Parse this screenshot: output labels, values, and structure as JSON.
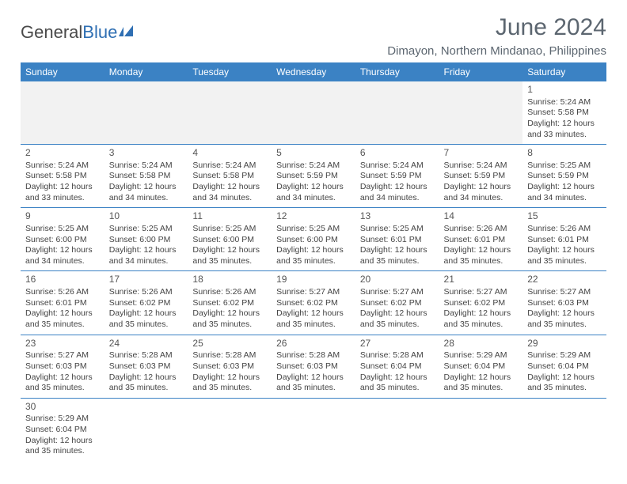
{
  "logo": {
    "part1": "General",
    "part2": "Blue"
  },
  "title": "June 2024",
  "location": "Dimayon, Northern Mindanao, Philippines",
  "colors": {
    "header_bg": "#3b82c4",
    "header_text": "#ffffff",
    "title_text": "#5c6670",
    "cell_border": "#3b82c4",
    "empty_bg": "#f2f2f2"
  },
  "weekdays": [
    "Sunday",
    "Monday",
    "Tuesday",
    "Wednesday",
    "Thursday",
    "Friday",
    "Saturday"
  ],
  "weeks": [
    [
      null,
      null,
      null,
      null,
      null,
      null,
      {
        "n": "1",
        "rise": "Sunrise: 5:24 AM",
        "set": "Sunset: 5:58 PM",
        "dl1": "Daylight: 12 hours",
        "dl2": "and 33 minutes."
      }
    ],
    [
      {
        "n": "2",
        "rise": "Sunrise: 5:24 AM",
        "set": "Sunset: 5:58 PM",
        "dl1": "Daylight: 12 hours",
        "dl2": "and 33 minutes."
      },
      {
        "n": "3",
        "rise": "Sunrise: 5:24 AM",
        "set": "Sunset: 5:58 PM",
        "dl1": "Daylight: 12 hours",
        "dl2": "and 34 minutes."
      },
      {
        "n": "4",
        "rise": "Sunrise: 5:24 AM",
        "set": "Sunset: 5:58 PM",
        "dl1": "Daylight: 12 hours",
        "dl2": "and 34 minutes."
      },
      {
        "n": "5",
        "rise": "Sunrise: 5:24 AM",
        "set": "Sunset: 5:59 PM",
        "dl1": "Daylight: 12 hours",
        "dl2": "and 34 minutes."
      },
      {
        "n": "6",
        "rise": "Sunrise: 5:24 AM",
        "set": "Sunset: 5:59 PM",
        "dl1": "Daylight: 12 hours",
        "dl2": "and 34 minutes."
      },
      {
        "n": "7",
        "rise": "Sunrise: 5:24 AM",
        "set": "Sunset: 5:59 PM",
        "dl1": "Daylight: 12 hours",
        "dl2": "and 34 minutes."
      },
      {
        "n": "8",
        "rise": "Sunrise: 5:25 AM",
        "set": "Sunset: 5:59 PM",
        "dl1": "Daylight: 12 hours",
        "dl2": "and 34 minutes."
      }
    ],
    [
      {
        "n": "9",
        "rise": "Sunrise: 5:25 AM",
        "set": "Sunset: 6:00 PM",
        "dl1": "Daylight: 12 hours",
        "dl2": "and 34 minutes."
      },
      {
        "n": "10",
        "rise": "Sunrise: 5:25 AM",
        "set": "Sunset: 6:00 PM",
        "dl1": "Daylight: 12 hours",
        "dl2": "and 34 minutes."
      },
      {
        "n": "11",
        "rise": "Sunrise: 5:25 AM",
        "set": "Sunset: 6:00 PM",
        "dl1": "Daylight: 12 hours",
        "dl2": "and 35 minutes."
      },
      {
        "n": "12",
        "rise": "Sunrise: 5:25 AM",
        "set": "Sunset: 6:00 PM",
        "dl1": "Daylight: 12 hours",
        "dl2": "and 35 minutes."
      },
      {
        "n": "13",
        "rise": "Sunrise: 5:25 AM",
        "set": "Sunset: 6:01 PM",
        "dl1": "Daylight: 12 hours",
        "dl2": "and 35 minutes."
      },
      {
        "n": "14",
        "rise": "Sunrise: 5:26 AM",
        "set": "Sunset: 6:01 PM",
        "dl1": "Daylight: 12 hours",
        "dl2": "and 35 minutes."
      },
      {
        "n": "15",
        "rise": "Sunrise: 5:26 AM",
        "set": "Sunset: 6:01 PM",
        "dl1": "Daylight: 12 hours",
        "dl2": "and 35 minutes."
      }
    ],
    [
      {
        "n": "16",
        "rise": "Sunrise: 5:26 AM",
        "set": "Sunset: 6:01 PM",
        "dl1": "Daylight: 12 hours",
        "dl2": "and 35 minutes."
      },
      {
        "n": "17",
        "rise": "Sunrise: 5:26 AM",
        "set": "Sunset: 6:02 PM",
        "dl1": "Daylight: 12 hours",
        "dl2": "and 35 minutes."
      },
      {
        "n": "18",
        "rise": "Sunrise: 5:26 AM",
        "set": "Sunset: 6:02 PM",
        "dl1": "Daylight: 12 hours",
        "dl2": "and 35 minutes."
      },
      {
        "n": "19",
        "rise": "Sunrise: 5:27 AM",
        "set": "Sunset: 6:02 PM",
        "dl1": "Daylight: 12 hours",
        "dl2": "and 35 minutes."
      },
      {
        "n": "20",
        "rise": "Sunrise: 5:27 AM",
        "set": "Sunset: 6:02 PM",
        "dl1": "Daylight: 12 hours",
        "dl2": "and 35 minutes."
      },
      {
        "n": "21",
        "rise": "Sunrise: 5:27 AM",
        "set": "Sunset: 6:02 PM",
        "dl1": "Daylight: 12 hours",
        "dl2": "and 35 minutes."
      },
      {
        "n": "22",
        "rise": "Sunrise: 5:27 AM",
        "set": "Sunset: 6:03 PM",
        "dl1": "Daylight: 12 hours",
        "dl2": "and 35 minutes."
      }
    ],
    [
      {
        "n": "23",
        "rise": "Sunrise: 5:27 AM",
        "set": "Sunset: 6:03 PM",
        "dl1": "Daylight: 12 hours",
        "dl2": "and 35 minutes."
      },
      {
        "n": "24",
        "rise": "Sunrise: 5:28 AM",
        "set": "Sunset: 6:03 PM",
        "dl1": "Daylight: 12 hours",
        "dl2": "and 35 minutes."
      },
      {
        "n": "25",
        "rise": "Sunrise: 5:28 AM",
        "set": "Sunset: 6:03 PM",
        "dl1": "Daylight: 12 hours",
        "dl2": "and 35 minutes."
      },
      {
        "n": "26",
        "rise": "Sunrise: 5:28 AM",
        "set": "Sunset: 6:03 PM",
        "dl1": "Daylight: 12 hours",
        "dl2": "and 35 minutes."
      },
      {
        "n": "27",
        "rise": "Sunrise: 5:28 AM",
        "set": "Sunset: 6:04 PM",
        "dl1": "Daylight: 12 hours",
        "dl2": "and 35 minutes."
      },
      {
        "n": "28",
        "rise": "Sunrise: 5:29 AM",
        "set": "Sunset: 6:04 PM",
        "dl1": "Daylight: 12 hours",
        "dl2": "and 35 minutes."
      },
      {
        "n": "29",
        "rise": "Sunrise: 5:29 AM",
        "set": "Sunset: 6:04 PM",
        "dl1": "Daylight: 12 hours",
        "dl2": "and 35 minutes."
      }
    ],
    [
      {
        "n": "30",
        "rise": "Sunrise: 5:29 AM",
        "set": "Sunset: 6:04 PM",
        "dl1": "Daylight: 12 hours",
        "dl2": "and 35 minutes."
      },
      null,
      null,
      null,
      null,
      null,
      null
    ]
  ]
}
